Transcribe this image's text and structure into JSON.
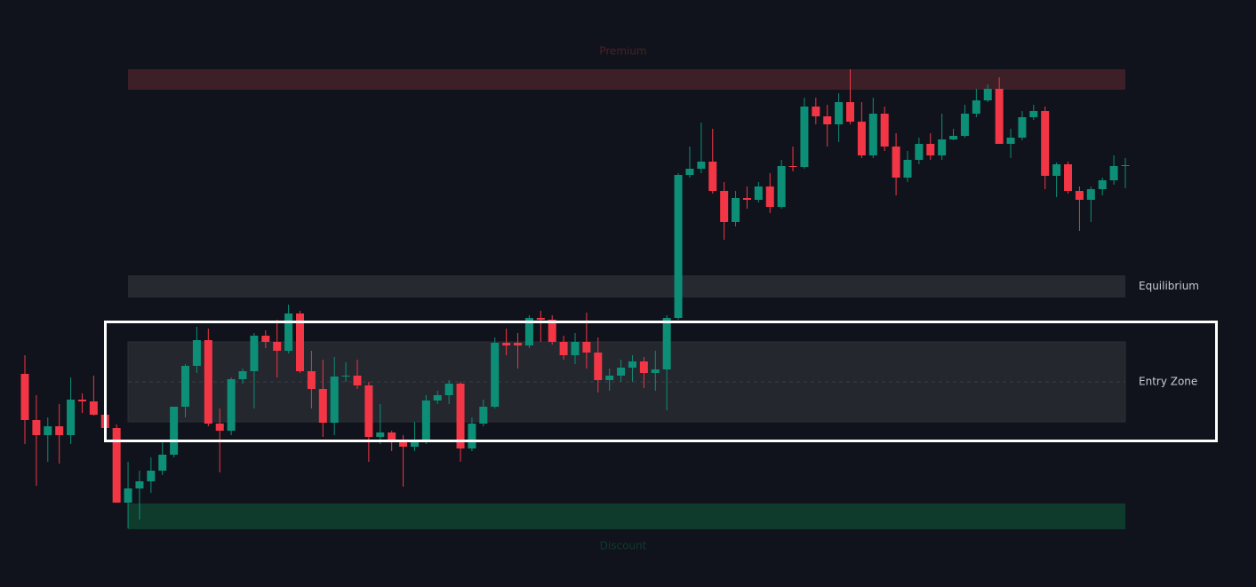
{
  "chart_data": {
    "type": "candlestick",
    "ylim": [
      0,
      661
    ],
    "up_color": "#0d8f77",
    "down_color": "#f23645",
    "open": [
      240,
      188,
      171,
      181,
      171,
      211,
      209,
      194,
      179,
      95,
      111,
      119,
      131,
      149,
      203,
      249,
      278,
      184,
      176,
      234,
      243,
      283,
      276,
      266,
      308,
      243,
      223,
      185,
      237,
      238,
      227,
      169,
      174,
      164,
      158,
      164,
      210,
      216,
      229,
      156,
      184,
      203,
      275,
      275,
      272,
      303,
      301,
      276,
      261,
      276,
      264,
      233,
      238,
      247,
      254,
      241,
      245,
      303,
      464,
      471,
      479,
      446,
      411,
      438,
      436,
      451,
      428,
      474,
      473,
      541,
      530,
      521,
      546,
      524,
      486,
      533,
      496,
      461,
      481,
      499,
      486,
      504,
      508,
      533,
      548,
      561,
      499,
      506,
      529,
      536,
      463,
      476,
      446,
      436,
      448,
      458,
      474
    ],
    "high": [
      261,
      216,
      191,
      206,
      236,
      218,
      238,
      206,
      183,
      141,
      131,
      146,
      166,
      203,
      251,
      293,
      291,
      201,
      236,
      246,
      286,
      289,
      301,
      318,
      311,
      266,
      256,
      259,
      253,
      256,
      231,
      206,
      176,
      171,
      186,
      216,
      221,
      233,
      231,
      191,
      211,
      281,
      291,
      286,
      306,
      311,
      306,
      283,
      286,
      309,
      281,
      246,
      256,
      261,
      259,
      266,
      306,
      466,
      496,
      523,
      516,
      456,
      446,
      451,
      456,
      466,
      481,
      496,
      551,
      551,
      543,
      556,
      583,
      546,
      551,
      541,
      511,
      491,
      506,
      511,
      533,
      516,
      543,
      561,
      566,
      574,
      516,
      536,
      543,
      541,
      478,
      479,
      451,
      451,
      461,
      486,
      483
    ],
    "low": [
      161,
      114,
      141,
      139,
      161,
      196,
      193,
      171,
      95,
      66,
      76,
      106,
      126,
      146,
      191,
      241,
      181,
      129,
      171,
      229,
      201,
      269,
      236,
      263,
      241,
      201,
      169,
      171,
      231,
      223,
      141,
      161,
      153,
      113,
      153,
      161,
      206,
      206,
      141,
      153,
      181,
      201,
      261,
      246,
      269,
      276,
      273,
      256,
      251,
      246,
      219,
      221,
      231,
      231,
      224,
      221,
      199,
      301,
      461,
      466,
      443,
      391,
      406,
      426,
      433,
      421,
      426,
      468,
      471,
      521,
      496,
      501,
      521,
      483,
      483,
      491,
      441,
      456,
      476,
      481,
      481,
      503,
      506,
      529,
      546,
      499,
      483,
      503,
      526,
      448,
      439,
      443,
      401,
      411,
      441,
      453,
      449
    ],
    "close": [
      188,
      171,
      181,
      171,
      211,
      209,
      194,
      179,
      95,
      111,
      119,
      131,
      149,
      203,
      249,
      278,
      184,
      176,
      234,
      243,
      283,
      276,
      266,
      308,
      243,
      223,
      185,
      237,
      238,
      227,
      169,
      174,
      164,
      158,
      164,
      210,
      216,
      229,
      156,
      184,
      203,
      275,
      272,
      272,
      303,
      301,
      276,
      261,
      276,
      264,
      233,
      238,
      247,
      254,
      241,
      245,
      303,
      464,
      471,
      479,
      446,
      411,
      438,
      436,
      451,
      428,
      474,
      473,
      541,
      530,
      521,
      546,
      524,
      486,
      533,
      496,
      461,
      481,
      499,
      486,
      504,
      508,
      533,
      548,
      561,
      499,
      506,
      529,
      536,
      463,
      476,
      446,
      436,
      448,
      458,
      474,
      475
    ],
    "zones": [
      {
        "label": "Premium",
        "range": [
          560,
          583
        ],
        "color": "#3d1f27",
        "label_color": "#4d2028",
        "label_position": "top"
      },
      {
        "label": "Equilibrium",
        "range": [
          326,
          351
        ],
        "color": "#262930",
        "label_color": "#c9cbd1",
        "label_position": "right"
      },
      {
        "label": "Entry Zone",
        "range": [
          186,
          276
        ],
        "color": "#24272e",
        "label_color": "#c9cbd1",
        "label_position": "right",
        "midline": true
      },
      {
        "label": "Discount",
        "range": [
          65,
          94
        ],
        "color": "#0f3b2d",
        "label_color": "#0f3b2d",
        "label_position": "bottom"
      }
    ]
  }
}
